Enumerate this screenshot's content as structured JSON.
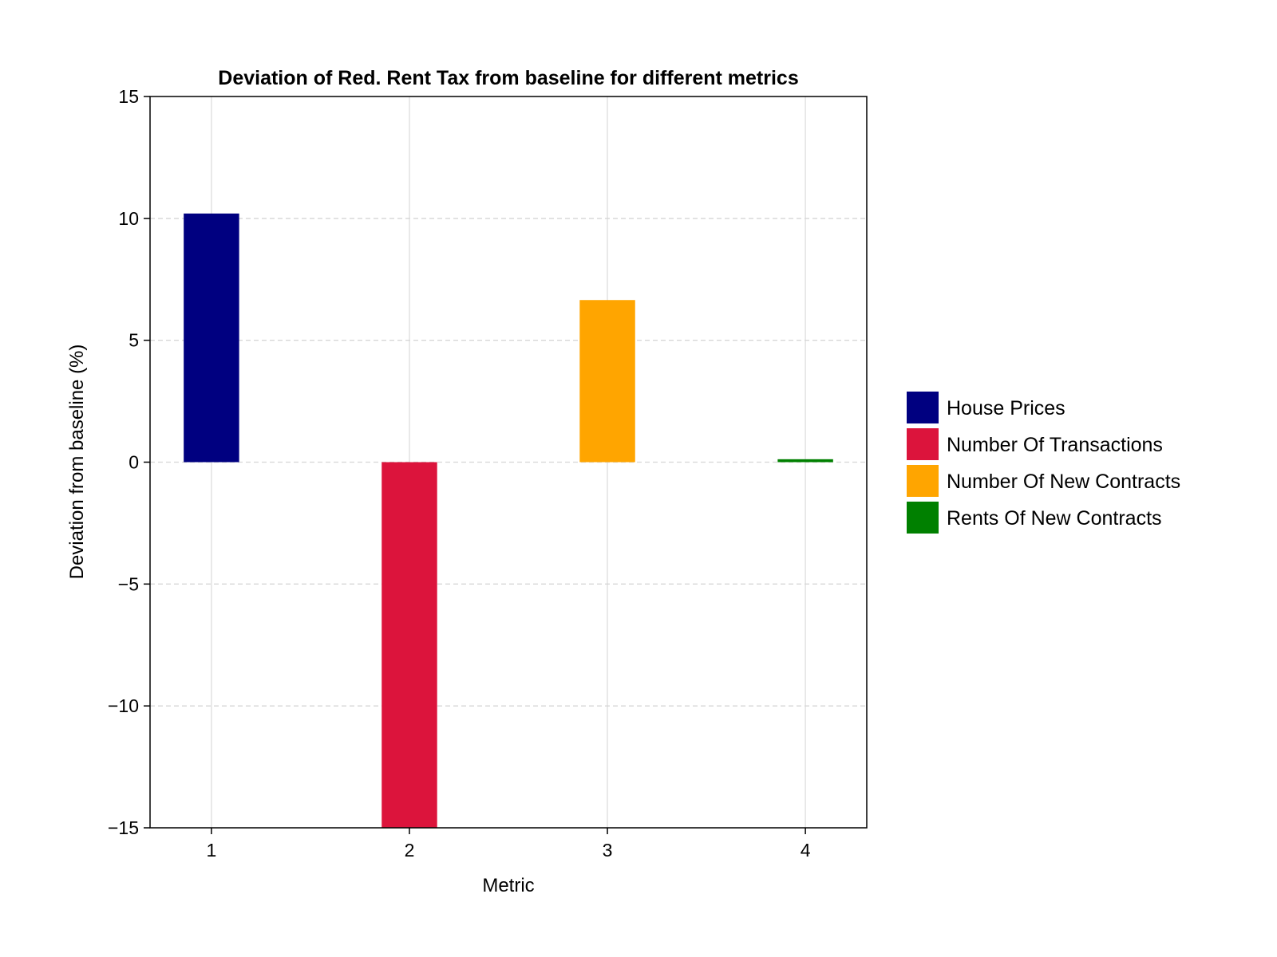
{
  "chart_data": {
    "type": "bar",
    "title": "Deviation of Red. Rent Tax from baseline for different metrics",
    "xlabel": "Metric",
    "ylabel": "Deviation from baseline (%)",
    "categories": [
      "1",
      "2",
      "3",
      "4"
    ],
    "x": [
      1,
      2,
      3,
      4
    ],
    "ylim": [
      -15,
      15
    ],
    "xlim": [
      0.69,
      4.31
    ],
    "yticks": [
      -15,
      -10,
      -5,
      0,
      5,
      10,
      15
    ],
    "ytick_labels": [
      "−15",
      "−10",
      "−5",
      "0",
      "5",
      "10",
      "15"
    ],
    "series": [
      {
        "name": "House Prices",
        "x": 1,
        "value": 10.2,
        "color": "#000080"
      },
      {
        "name": "Number Of Transactions",
        "x": 2,
        "value": -15.0,
        "color": "#dc143c"
      },
      {
        "name": "Number Of New Contracts",
        "x": 3,
        "value": 6.65,
        "color": "#ffa500"
      },
      {
        "name": "Rents Of New Contracts",
        "x": 4,
        "value": 0.12,
        "color": "#008000"
      }
    ],
    "grid": {
      "x": "solid",
      "y": "dashed"
    },
    "legend_position": "right"
  }
}
